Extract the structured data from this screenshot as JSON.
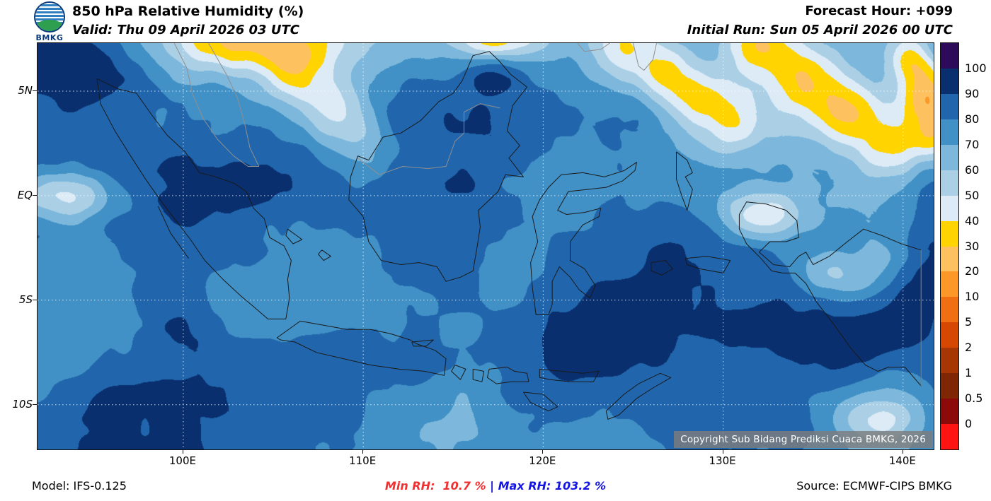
{
  "header": {
    "logo_text": "BMKG",
    "title": "850 hPa Relative Humidity (%)",
    "valid_line": "Valid: Thu 09 April 2026 03 UTC",
    "forecast_hour": "Forecast Hour: +099",
    "initial_run": "Initial Run: Sun 05 April 2026 00 UTC"
  },
  "map": {
    "copyright": "Copyright Sub Bidang Prediksi Cuaca BMKG, 2026",
    "lat_ticks": [
      {
        "label": "5N",
        "lat": 5
      },
      {
        "label": "EQ",
        "lat": 0
      },
      {
        "label": "5S",
        "lat": -5
      },
      {
        "label": "10S",
        "lat": -10
      }
    ],
    "lon_ticks": [
      {
        "label": "100E",
        "lon": 100
      },
      {
        "label": "110E",
        "lon": 110
      },
      {
        "label": "120E",
        "lon": 120
      },
      {
        "label": "130E",
        "lon": 130
      },
      {
        "label": "140E",
        "lon": 140
      }
    ],
    "extent": {
      "lon_min": 91.9,
      "lon_max": 141.7,
      "lat_min": -12.14,
      "lat_max": 7.3
    }
  },
  "colorbar": {
    "levels": [
      "100",
      "90",
      "80",
      "70",
      "60",
      "50",
      "40",
      "30",
      "20",
      "10",
      "5",
      "2",
      "1",
      "0.5",
      "0"
    ],
    "colors_top_to_bottom": [
      "#2d0a5a",
      "#0a2f6e",
      "#2166ac",
      "#4191c6",
      "#7db8dc",
      "#abd0e6",
      "#dcebf5",
      "#ffd400",
      "#fdc25f",
      "#fd9728",
      "#ef6f12",
      "#d64701",
      "#a63603",
      "#7f2704",
      "#8c0a0a",
      "#ff1414"
    ]
  },
  "footer": {
    "model": "Model: IFS-0.125",
    "min_label": "Min RH:  10.7 %",
    "separator": " | ",
    "max_label": "Max RH: 103.2 %",
    "source": "Source: ECMWF-CIPS BMKG",
    "min_color": "#f03030",
    "max_color": "#1515e0"
  },
  "chart_data": {
    "type": "heatmap",
    "variable": "850 hPa Relative Humidity",
    "units": "%",
    "min_value": 10.7,
    "max_value": 103.2,
    "levels": [
      0,
      0.5,
      1,
      2,
      5,
      10,
      20,
      30,
      40,
      50,
      60,
      70,
      80,
      90,
      100
    ],
    "lon_range": [
      91.9,
      141.7
    ],
    "lat_range": [
      -12.14,
      7.3
    ]
  }
}
